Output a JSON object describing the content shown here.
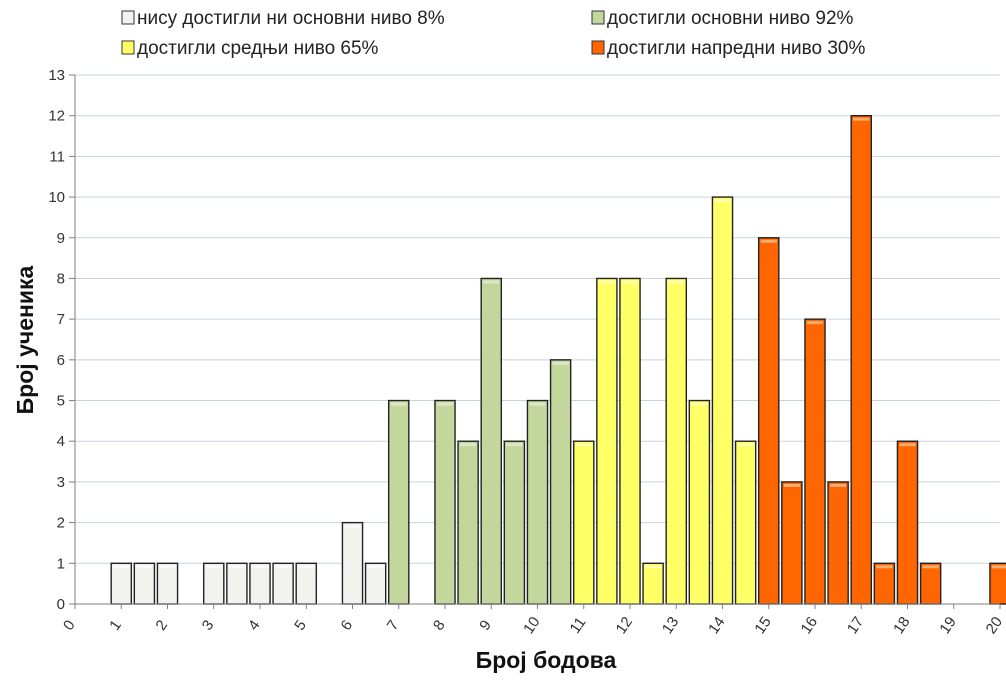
{
  "chart_data": {
    "type": "bar",
    "xlabel": "Број бодова",
    "ylabel": "Број ученика",
    "ylim": [
      0,
      13
    ],
    "yticks": [
      "0",
      "1",
      "2",
      "3",
      "4",
      "5",
      "6",
      "7",
      "8",
      "9",
      "10",
      "11",
      "12",
      "13"
    ],
    "xticks": [
      "0",
      "1",
      "2",
      "3",
      "4",
      "5",
      "6",
      "7",
      "8",
      "9",
      "10",
      "11",
      "12",
      "13",
      "14",
      "15",
      "16",
      "17",
      "18",
      "19",
      "20"
    ],
    "grid": true,
    "legend_position": "top",
    "series": [
      {
        "name": "нису достигли ни основни ниво 8%",
        "color": "#f2f2ee",
        "points": [
          {
            "x": 1,
            "y": 1
          },
          {
            "x": 1.5,
            "y": 1
          },
          {
            "x": 2,
            "y": 1
          },
          {
            "x": 3,
            "y": 1
          },
          {
            "x": 3.5,
            "y": 1
          },
          {
            "x": 4,
            "y": 1
          },
          {
            "x": 4.5,
            "y": 1
          },
          {
            "x": 5,
            "y": 1
          },
          {
            "x": 6,
            "y": 2
          },
          {
            "x": 6.5,
            "y": 1
          }
        ]
      },
      {
        "name": "достигли основни ниво 92%",
        "color": "#c3d69b",
        "points": [
          {
            "x": 7,
            "y": 5
          },
          {
            "x": 8,
            "y": 5
          },
          {
            "x": 8.5,
            "y": 4
          },
          {
            "x": 9,
            "y": 8
          },
          {
            "x": 9.5,
            "y": 4
          },
          {
            "x": 10,
            "y": 5
          },
          {
            "x": 10.5,
            "y": 6
          }
        ]
      },
      {
        "name": "достигли средњи ниво 65%",
        "color": "#ffff66",
        "points": [
          {
            "x": 11,
            "y": 4
          },
          {
            "x": 11.5,
            "y": 8
          },
          {
            "x": 12,
            "y": 8
          },
          {
            "x": 12.5,
            "y": 1
          },
          {
            "x": 13,
            "y": 8
          },
          {
            "x": 13.5,
            "y": 5
          },
          {
            "x": 14,
            "y": 10
          },
          {
            "x": 14.5,
            "y": 4
          }
        ]
      },
      {
        "name": "достигли напредни ниво 30%",
        "color": "#ff6600",
        "points": [
          {
            "x": 15,
            "y": 9
          },
          {
            "x": 15.5,
            "y": 3
          },
          {
            "x": 16,
            "y": 7
          },
          {
            "x": 16.5,
            "y": 3
          },
          {
            "x": 17,
            "y": 12
          },
          {
            "x": 17.5,
            "y": 1
          },
          {
            "x": 18,
            "y": 4
          },
          {
            "x": 18.5,
            "y": 1
          },
          {
            "x": 20,
            "y": 1
          }
        ]
      }
    ]
  }
}
